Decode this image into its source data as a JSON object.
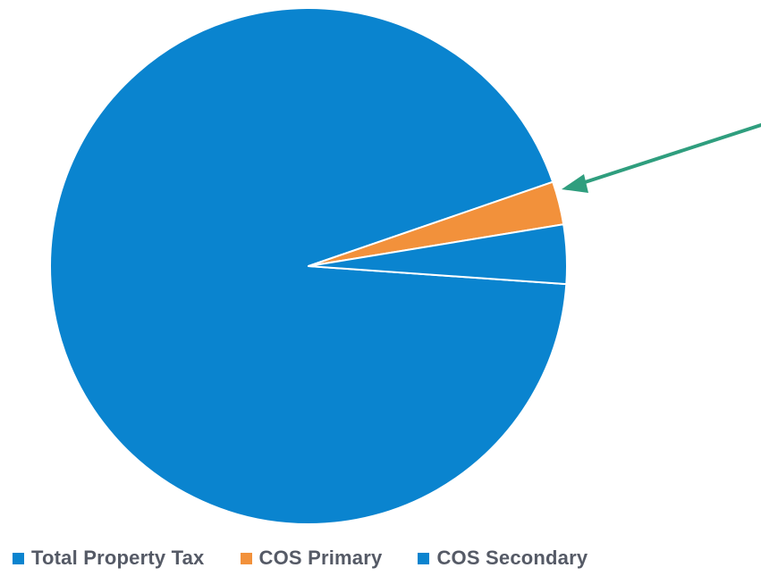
{
  "chart_data": {
    "type": "pie",
    "title": "",
    "series": [
      {
        "name": "Total Property Tax",
        "value": 93.6,
        "color": "#0a84cf"
      },
      {
        "name": "COS Primary",
        "value": 2.7,
        "color": "#f2913b"
      },
      {
        "name": "COS Secondary",
        "value": 3.7,
        "color": "#0a84cf"
      }
    ],
    "legend_position": "bottom",
    "annotations": [
      {
        "type": "arrow",
        "points_to": "COS Primary",
        "color": "#2f9e7e"
      }
    ]
  },
  "legend": {
    "items": [
      {
        "label": "Total Property Tax",
        "color": "#0a84cf"
      },
      {
        "label": "COS Primary",
        "color": "#f2913b"
      },
      {
        "label": "COS Secondary",
        "color": "#0a84cf"
      }
    ]
  }
}
